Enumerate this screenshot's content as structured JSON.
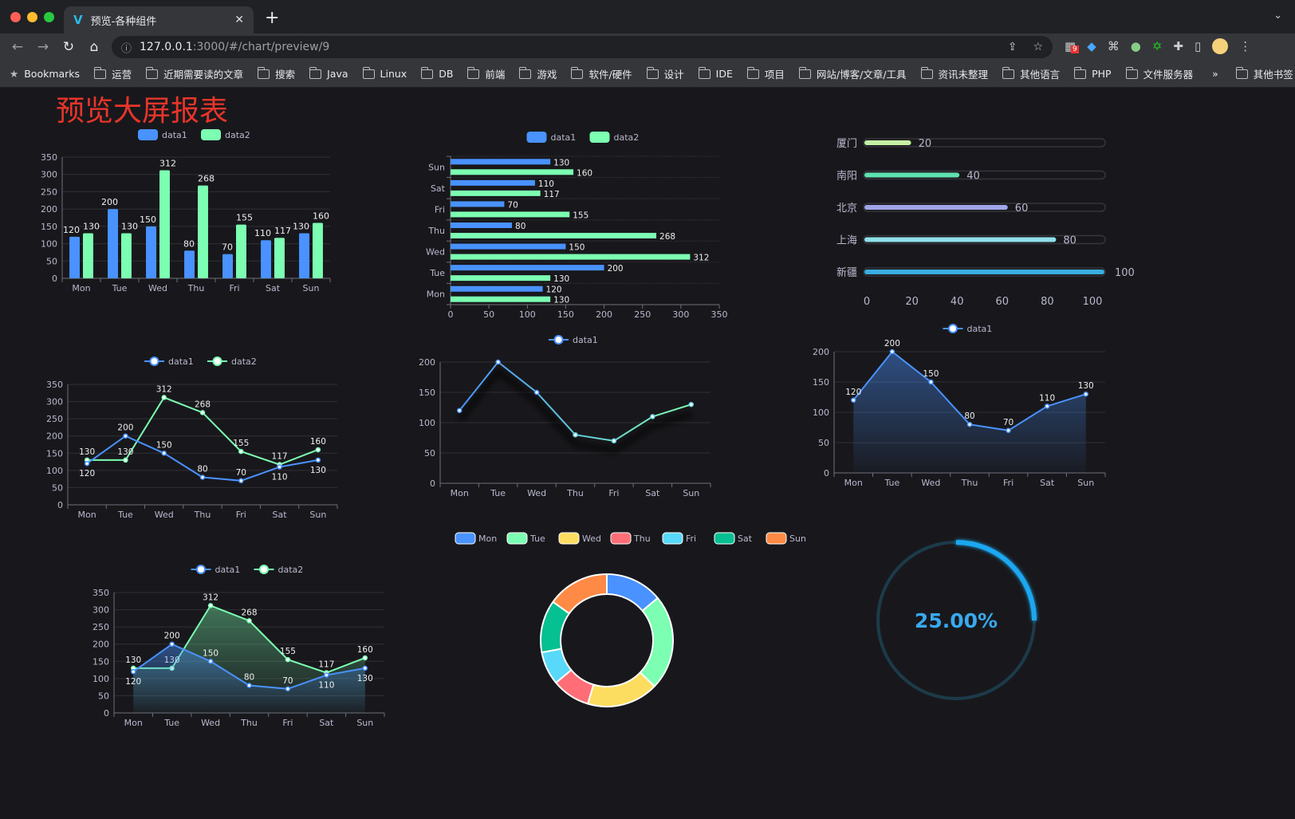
{
  "browser": {
    "tab_title": "预览-各种组件",
    "url_host": "127.0.0.1",
    "url_path": ":3000/#/chart/preview/9",
    "extension_badge": "9",
    "bookmarks_label": "Bookmarks",
    "bookmarks": [
      "运营",
      "近期需要读的文章",
      "搜索",
      "Java",
      "Linux",
      "DB",
      "前端",
      "游戏",
      "软件/硬件",
      "设计",
      "IDE",
      "项目",
      "网站/博客/文章/工具",
      "资讯未整理",
      "其他语言",
      "PHP",
      "文件服务器"
    ],
    "more": "»",
    "other_bookmarks": "其他书签"
  },
  "page": {
    "title": "预览大屏报表"
  },
  "colors": {
    "data1": "#4992ff",
    "data2": "#7cffb2",
    "title": "#e9352a",
    "gauge": "#1ea7f0"
  },
  "chart_data": [
    {
      "type": "bar",
      "legend": [
        "data1",
        "data2"
      ],
      "categories": [
        "Mon",
        "Tue",
        "Wed",
        "Thu",
        "Fri",
        "Sat",
        "Sun"
      ],
      "series": [
        {
          "name": "data1",
          "values": [
            120,
            200,
            150,
            80,
            70,
            110,
            130
          ]
        },
        {
          "name": "data2",
          "values": [
            130,
            130,
            312,
            268,
            155,
            117,
            160
          ]
        }
      ],
      "ylim": [
        0,
        350
      ],
      "yticks": [
        0,
        50,
        100,
        150,
        200,
        250,
        300,
        350
      ],
      "data_labels": true
    },
    {
      "type": "bar",
      "orientation": "horizontal",
      "legend": [
        "data1",
        "data2"
      ],
      "categories": [
        "Mon",
        "Tue",
        "Wed",
        "Thu",
        "Fri",
        "Sat",
        "Sun"
      ],
      "series": [
        {
          "name": "data1",
          "values": [
            120,
            200,
            150,
            80,
            70,
            110,
            130
          ]
        },
        {
          "name": "data2",
          "values": [
            130,
            130,
            312,
            268,
            155,
            117,
            160
          ]
        }
      ],
      "xlim": [
        0,
        350
      ],
      "xticks": [
        0,
        50,
        100,
        150,
        200,
        250,
        300,
        350
      ],
      "data_labels": true
    },
    {
      "type": "bar",
      "orientation": "horizontal",
      "style": "progress",
      "categories": [
        "厦门",
        "南阳",
        "北京",
        "上海",
        "新疆"
      ],
      "values": [
        20,
        40,
        60,
        80,
        100
      ],
      "colors": [
        "#c5f0a4",
        "#5ee0b0",
        "#9fa6e8",
        "#8fe0ea",
        "#3aaee0"
      ],
      "xlim": [
        0,
        100
      ],
      "xticks": [
        0,
        20,
        40,
        60,
        80,
        100
      ],
      "data_labels": true
    },
    {
      "type": "line",
      "legend": [
        "data1",
        "data2"
      ],
      "categories": [
        "Mon",
        "Tue",
        "Wed",
        "Thu",
        "Fri",
        "Sat",
        "Sun"
      ],
      "series": [
        {
          "name": "data1",
          "values": [
            120,
            200,
            150,
            80,
            70,
            110,
            130
          ]
        },
        {
          "name": "data2",
          "values": [
            130,
            130,
            312,
            268,
            155,
            117,
            160
          ]
        }
      ],
      "ylim": [
        0,
        350
      ],
      "yticks": [
        0,
        50,
        100,
        150,
        200,
        250,
        300,
        350
      ],
      "data_labels": true
    },
    {
      "type": "line",
      "legend": [
        "data1"
      ],
      "categories": [
        "Mon",
        "Tue",
        "Wed",
        "Thu",
        "Fri",
        "Sat",
        "Sun"
      ],
      "series": [
        {
          "name": "data1",
          "values": [
            120,
            200,
            150,
            80,
            70,
            110,
            130
          ]
        }
      ],
      "ylim": [
        0,
        200
      ],
      "yticks": [
        0,
        50,
        100,
        150,
        200
      ],
      "data_labels": false
    },
    {
      "type": "area",
      "legend": [
        "data1"
      ],
      "categories": [
        "Mon",
        "Tue",
        "Wed",
        "Thu",
        "Fri",
        "Sat",
        "Sun"
      ],
      "series": [
        {
          "name": "data1",
          "values": [
            120,
            200,
            150,
            80,
            70,
            110,
            130
          ]
        }
      ],
      "ylim": [
        0,
        200
      ],
      "yticks": [
        0,
        50,
        100,
        150,
        200
      ],
      "data_labels": true
    },
    {
      "type": "area",
      "legend": [
        "data1",
        "data2"
      ],
      "categories": [
        "Mon",
        "Tue",
        "Wed",
        "Thu",
        "Fri",
        "Sat",
        "Sun"
      ],
      "series": [
        {
          "name": "data1",
          "values": [
            120,
            200,
            150,
            80,
            70,
            110,
            130
          ]
        },
        {
          "name": "data2",
          "values": [
            130,
            130,
            312,
            268,
            155,
            117,
            160
          ]
        }
      ],
      "ylim": [
        0,
        350
      ],
      "yticks": [
        0,
        50,
        100,
        150,
        200,
        250,
        300,
        350
      ],
      "data_labels": true
    },
    {
      "type": "pie",
      "style": "donut",
      "categories": [
        "Mon",
        "Tue",
        "Wed",
        "Thu",
        "Fri",
        "Sat",
        "Sun"
      ],
      "values": [
        120,
        200,
        150,
        80,
        70,
        110,
        130
      ],
      "colors": [
        "#4992ff",
        "#7cffb2",
        "#fddd60",
        "#ff6e76",
        "#58d9f9",
        "#05c091",
        "#ff8a45"
      ]
    },
    {
      "type": "gauge",
      "style": "progress-ring",
      "value": 0.25,
      "label": "25.00%"
    }
  ]
}
